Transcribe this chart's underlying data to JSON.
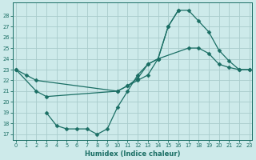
{
  "bg_color": "#cdeaea",
  "grid_color": "#a8cccc",
  "line_color": "#1a6e64",
  "line_A_x": [
    0,
    1,
    2,
    10,
    11,
    12,
    13,
    14,
    15,
    16,
    17,
    18,
    19,
    20,
    21,
    22,
    23
  ],
  "line_A_y": [
    23,
    22.5,
    22.0,
    21.0,
    21.5,
    22.2,
    23.5,
    24.0,
    27.0,
    28.5,
    28.5,
    27.5,
    26.5,
    24.8,
    23.8,
    23.0,
    23.0
  ],
  "line_B_x": [
    0,
    2,
    3,
    10,
    11,
    12,
    13,
    14,
    17,
    18,
    19,
    20,
    21,
    22,
    23
  ],
  "line_B_y": [
    23.0,
    21.0,
    20.5,
    21.0,
    21.5,
    22.0,
    22.5,
    24.0,
    25.0,
    25.0,
    24.5,
    23.5,
    23.2,
    23.0,
    23.0
  ],
  "line_C_x": [
    3,
    4,
    5,
    6,
    7,
    8,
    9,
    10,
    11,
    12,
    13,
    14,
    15,
    16
  ],
  "line_C_y": [
    19.0,
    17.8,
    17.5,
    17.5,
    17.5,
    17.0,
    17.5,
    19.5,
    21.0,
    22.5,
    23.5,
    24.0,
    27.0,
    28.5
  ],
  "xlim": [
    -0.3,
    23.3
  ],
  "ylim": [
    16.5,
    29.2
  ],
  "yticks": [
    17,
    18,
    19,
    20,
    21,
    22,
    23,
    24,
    25,
    26,
    27,
    28
  ],
  "xticks": [
    0,
    1,
    2,
    3,
    4,
    5,
    6,
    7,
    8,
    9,
    10,
    11,
    12,
    13,
    14,
    15,
    16,
    17,
    18,
    19,
    20,
    21,
    22,
    23
  ],
  "xlabel": "Humidex (Indice chaleur)"
}
